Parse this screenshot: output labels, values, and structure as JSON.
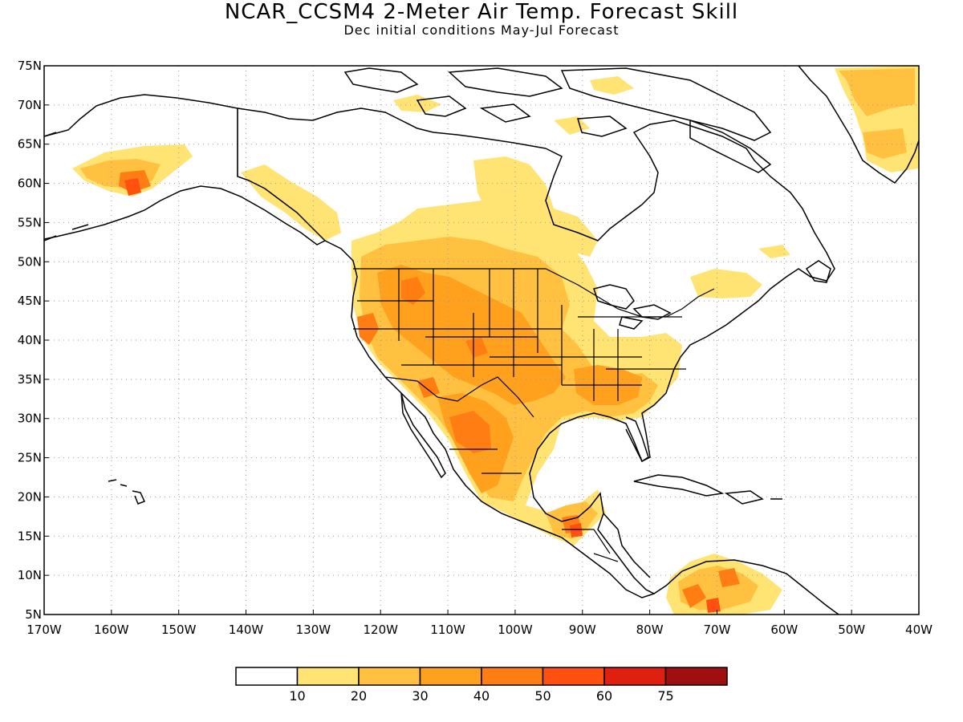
{
  "header": {
    "title": "NCAR_CCSM4 2-Meter Air Temp. Forecast Skill",
    "subtitle": "Dec initial conditions   May-Jul Forecast"
  },
  "map": {
    "lon_range": [
      -170,
      -40
    ],
    "lat_range": [
      5,
      75
    ],
    "lat_labels": [
      "75N",
      "70N",
      "65N",
      "60N",
      "55N",
      "50N",
      "45N",
      "40N",
      "35N",
      "30N",
      "25N",
      "20N",
      "15N",
      "10N",
      "5N"
    ],
    "lon_labels": [
      "170W",
      "160W",
      "150W",
      "140W",
      "130W",
      "120W",
      "110W",
      "100W",
      "90W",
      "80W",
      "70W",
      "60W",
      "50W",
      "40W"
    ],
    "gridlines": "dotted"
  },
  "colorbar": {
    "colors": [
      "#ffffff",
      "#ffe373",
      "#ffc13f",
      "#ffa11c",
      "#ff7d12",
      "#ff500f",
      "#e0200f",
      "#a00f0f"
    ],
    "labels": [
      "10",
      "20",
      "30",
      "40",
      "50",
      "60",
      "75"
    ]
  }
}
